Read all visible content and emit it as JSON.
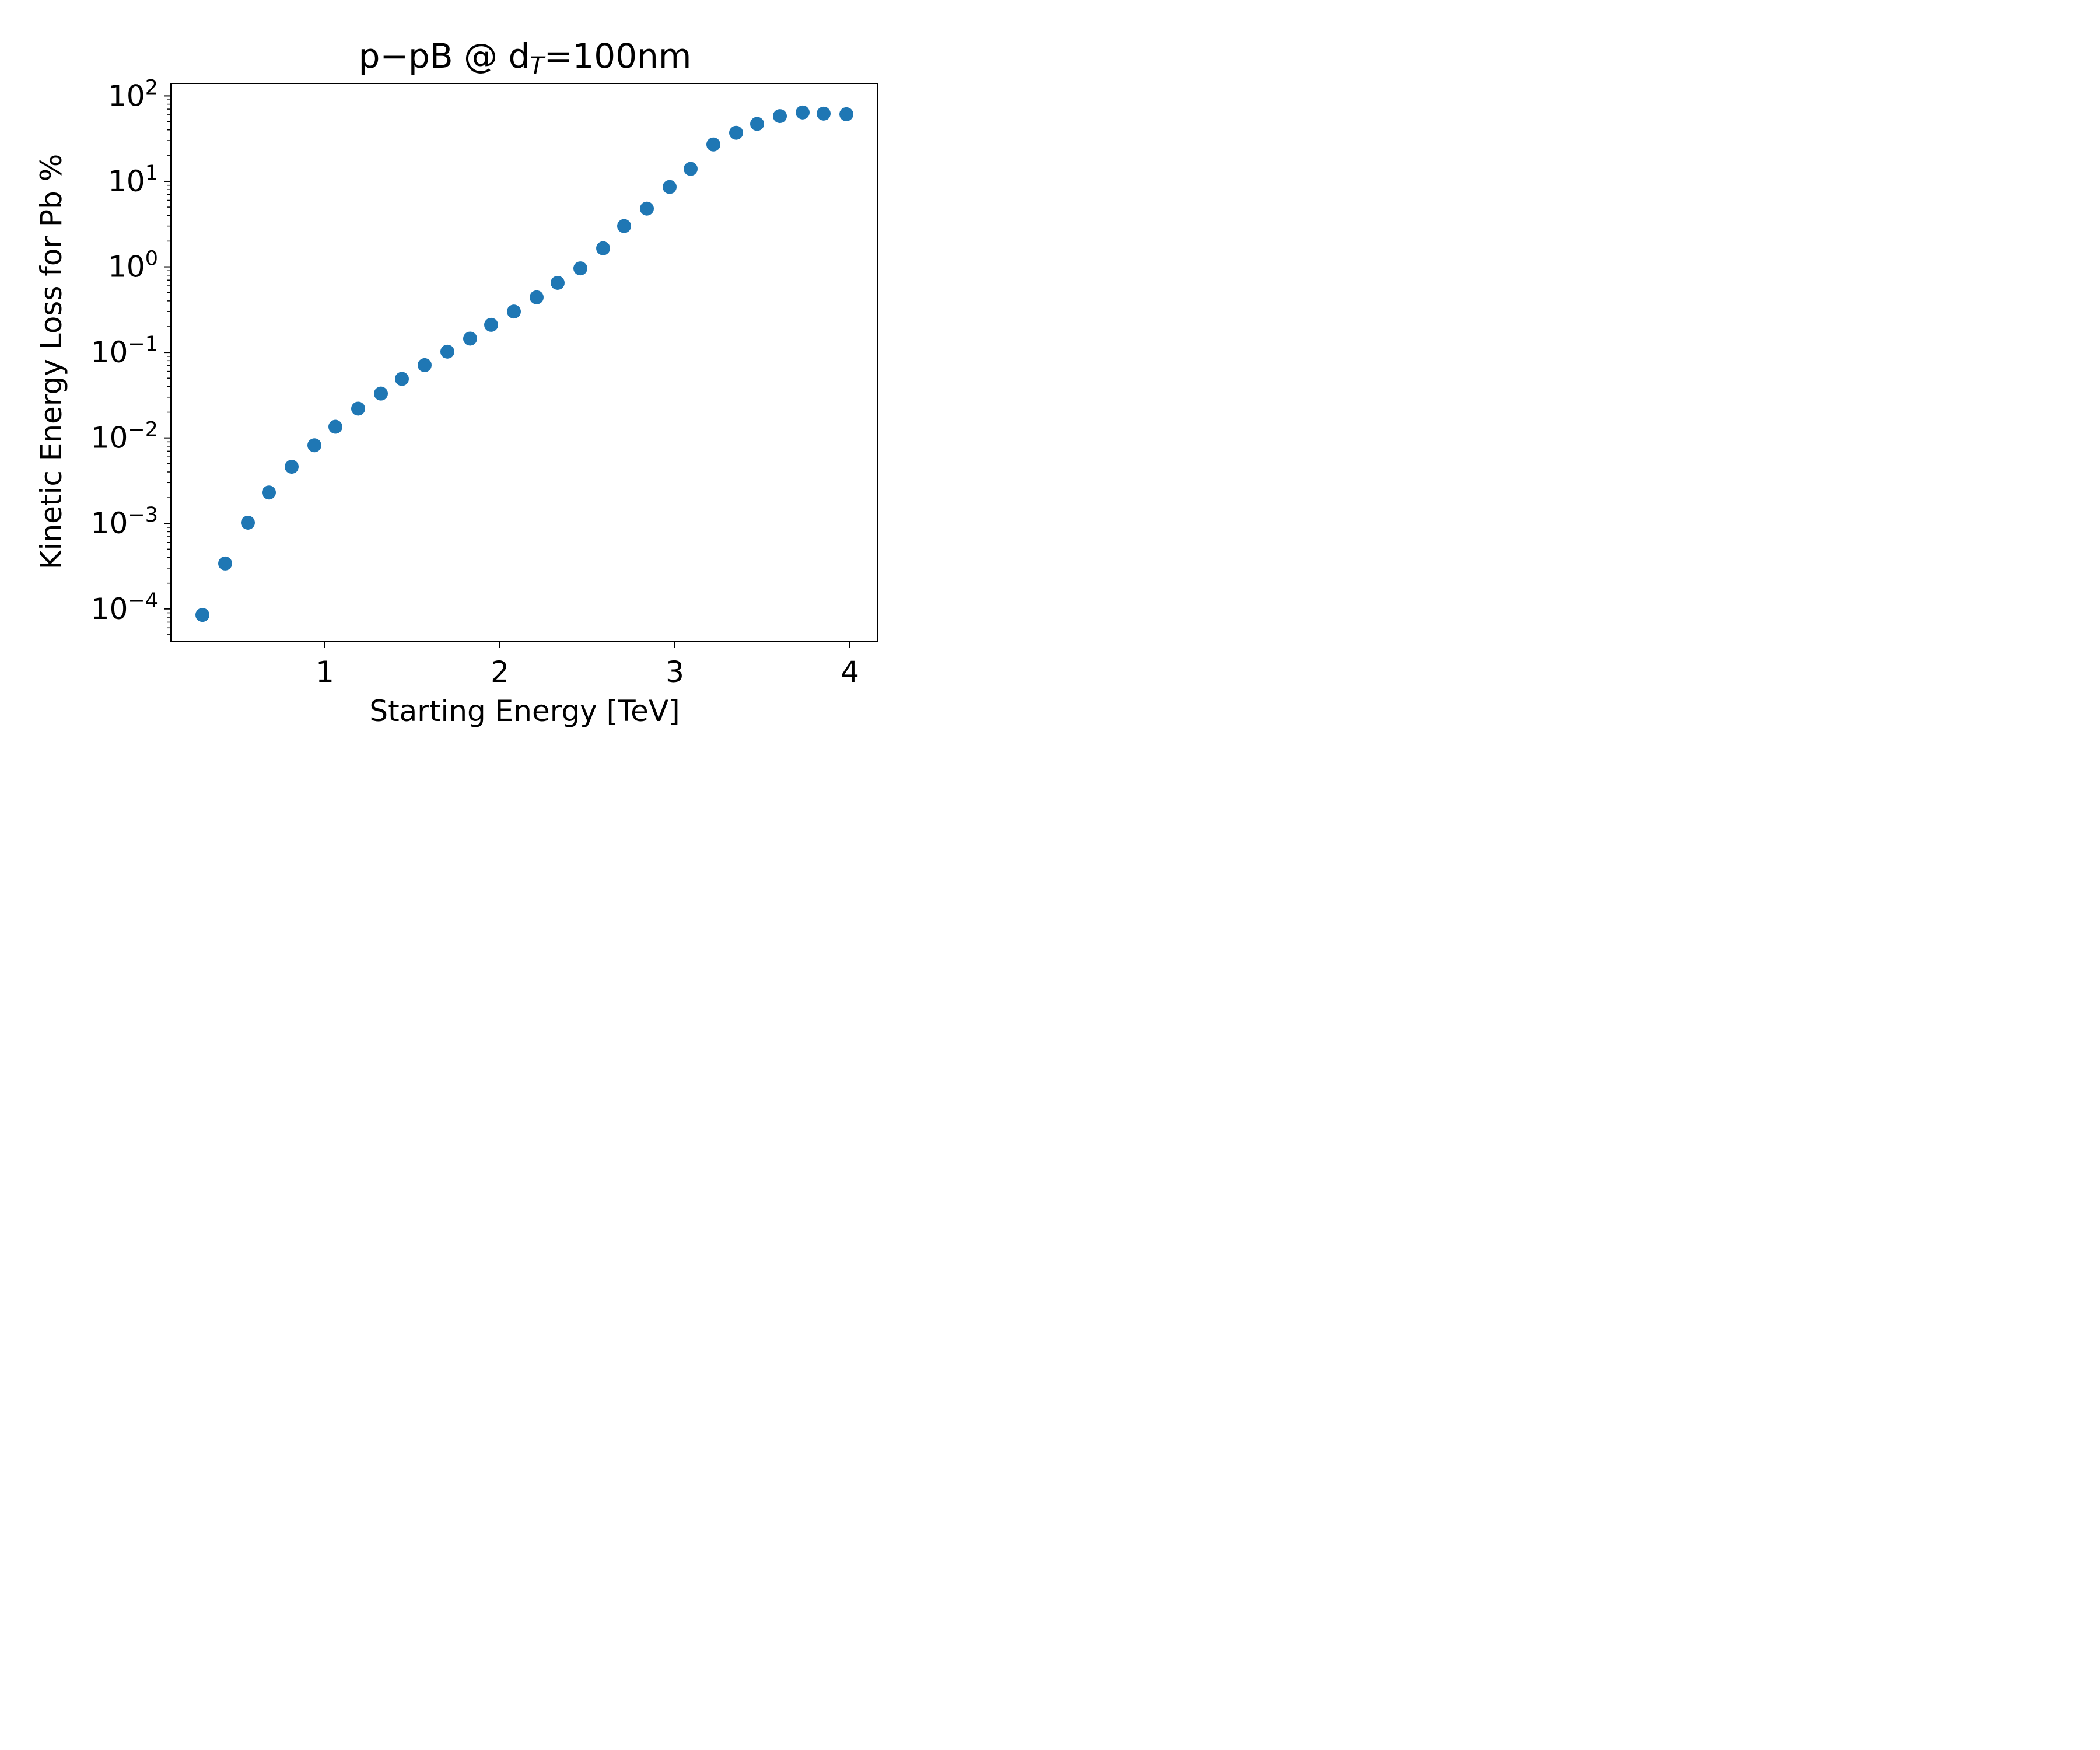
{
  "chart_data": {
    "type": "scatter",
    "title": {
      "prefix": "p−pB @ d",
      "subscript": "T",
      "suffix": "=100nm"
    },
    "xlabel": "Starting Energy [TeV]",
    "ylabel": "Kinetic Energy Loss for Pb %",
    "xlim": [
      0.12,
      4.16
    ],
    "ylim": [
      4.2e-05,
      140
    ],
    "yscale": "log",
    "grid": false,
    "x_ticks": [
      1,
      2,
      3,
      4
    ],
    "y_ticks": [
      -4,
      -3,
      -2,
      -1,
      0,
      1,
      2
    ],
    "marker_color": "#1f77b4",
    "points": {
      "x": [
        0.3,
        0.43,
        0.56,
        0.68,
        0.81,
        0.94,
        1.06,
        1.19,
        1.32,
        1.44,
        1.57,
        1.7,
        1.83,
        1.95,
        2.08,
        2.21,
        2.33,
        2.46,
        2.59,
        2.71,
        2.84,
        2.97,
        3.09,
        3.22,
        3.35,
        3.47,
        3.6,
        3.73,
        3.85,
        3.98
      ],
      "y": [
        8.5e-05,
        0.00034,
        0.00102,
        0.0023,
        0.0046,
        0.0082,
        0.0135,
        0.022,
        0.033,
        0.049,
        0.071,
        0.102,
        0.145,
        0.21,
        0.3,
        0.44,
        0.65,
        0.96,
        1.65,
        3.0,
        4.8,
        8.6,
        14.0,
        27.0,
        37.0,
        47.0,
        58.0,
        64.0,
        62.0,
        61.0
      ]
    }
  }
}
